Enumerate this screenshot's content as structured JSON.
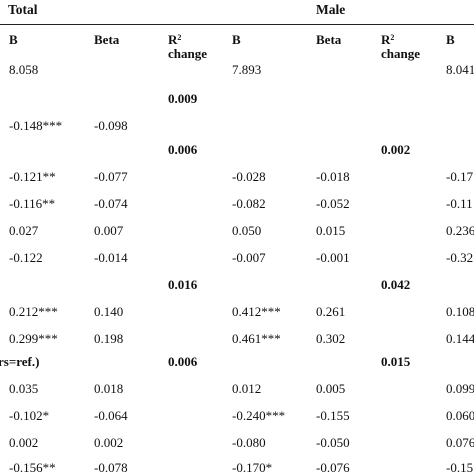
{
  "groups": {
    "total": "Total",
    "male": "Male"
  },
  "headers": {
    "b": "B",
    "beta": "Beta",
    "r2_symbol": "R",
    "r2_sup": "2",
    "r2_word": "change"
  },
  "rows": [
    {
      "t_b": "8.058",
      "t_beta": "",
      "t_r2": "",
      "m_b": "7.893",
      "m_beta": "",
      "m_r2": "",
      "f_b": "8.041"
    },
    {
      "t_b": "",
      "t_beta": "",
      "t_r2": "0.009",
      "m_b": "",
      "m_beta": "",
      "m_r2": "",
      "f_b": ""
    },
    {
      "t_b": "-0.148***",
      "t_beta": "-0.098",
      "t_r2": "",
      "m_b": "",
      "m_beta": "",
      "m_r2": "",
      "f_b": ""
    },
    {
      "t_b": "",
      "t_beta": "",
      "t_r2": "0.006",
      "m_b": "",
      "m_beta": "",
      "m_r2": "0.002",
      "f_b": ""
    },
    {
      "t_b": "-0.121**",
      "t_beta": "-0.077",
      "t_r2": "",
      "m_b": "-0.028",
      "m_beta": "-0.018",
      "m_r2": "",
      "f_b": "-0.17"
    },
    {
      "t_b": "-0.116**",
      "t_beta": "-0.074",
      "t_r2": "",
      "m_b": "-0.082",
      "m_beta": "-0.052",
      "m_r2": "",
      "f_b": "-0.11"
    },
    {
      "t_b": "0.027",
      "t_beta": "0.007",
      "t_r2": "",
      "m_b": "0.050",
      "m_beta": "0.015",
      "m_r2": "",
      "f_b": "0.236"
    },
    {
      "t_b": "-0.122",
      "t_beta": "-0.014",
      "t_r2": "",
      "m_b": "-0.007",
      "m_beta": "-0.001",
      "m_r2": "",
      "f_b": "-0.32"
    },
    {
      "t_b": "",
      "t_beta": "",
      "t_r2": "0.016",
      "m_b": "",
      "m_beta": "",
      "m_r2": "0.042",
      "f_b": ""
    },
    {
      "t_b": "0.212***",
      "t_beta": "0.140",
      "t_r2": "",
      "m_b": "0.412***",
      "m_beta": "0.261",
      "m_r2": "",
      "f_b": "0.108"
    },
    {
      "t_b": "0.299***",
      "t_beta": "0.198",
      "t_r2": "",
      "m_b": "0.461***",
      "m_beta": "0.302",
      "m_r2": "",
      "f_b": "0.144"
    },
    {
      "t_b": "rs=ref.)",
      "t_beta": "",
      "t_r2": "0.006",
      "m_b": "",
      "m_beta": "",
      "m_r2": "0.015",
      "f_b": ""
    },
    {
      "t_b": "0.035",
      "t_beta": "0.018",
      "t_r2": "",
      "m_b": "0.012",
      "m_beta": "0.005",
      "m_r2": "",
      "f_b": "0.099"
    },
    {
      "t_b": "-0.102*",
      "t_beta": "-0.064",
      "t_r2": "",
      "m_b": "-0.240***",
      "m_beta": "-0.155",
      "m_r2": "",
      "f_b": "0.060"
    },
    {
      "t_b": "0.002",
      "t_beta": "0.002",
      "t_r2": "",
      "m_b": "-0.080",
      "m_beta": "-0.050",
      "m_r2": "",
      "f_b": "0.076"
    },
    {
      "t_b": "-0.156**",
      "t_beta": "-0.078",
      "t_r2": "",
      "m_b": "-0.170*",
      "m_beta": "-0.076",
      "m_r2": "",
      "f_b": "-0.15"
    }
  ]
}
